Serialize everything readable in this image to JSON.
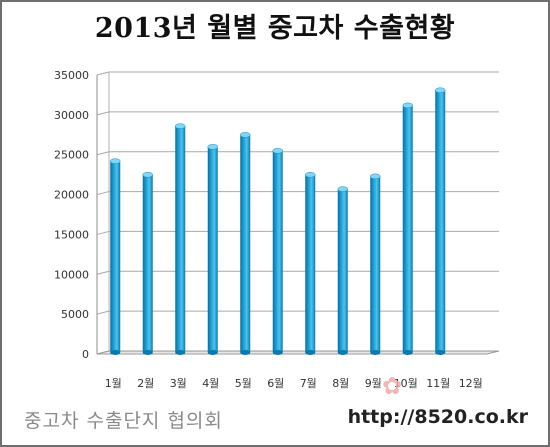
{
  "chart_data": {
    "type": "bar",
    "title": "2013년 월별 중고차 수출현황",
    "categories": [
      "1월",
      "2월",
      "3월",
      "4월",
      "5월",
      "6월",
      "7월",
      "8월",
      "9월",
      "10월",
      "11월",
      "12월"
    ],
    "values": [
      24000,
      22300,
      28400,
      25800,
      27300,
      25300,
      22300,
      20500,
      22100,
      31000,
      32900,
      null
    ],
    "ylim": [
      0,
      35000
    ],
    "yticks": [
      0,
      5000,
      10000,
      15000,
      20000,
      25000,
      30000,
      35000
    ],
    "xlabel": "",
    "ylabel": "",
    "grid": true,
    "legend": "none",
    "bar_color": "#1fa2d6"
  },
  "footer": {
    "left_text": "중고차 수출단지 협의회",
    "url": "http://8520.co.kr"
  }
}
